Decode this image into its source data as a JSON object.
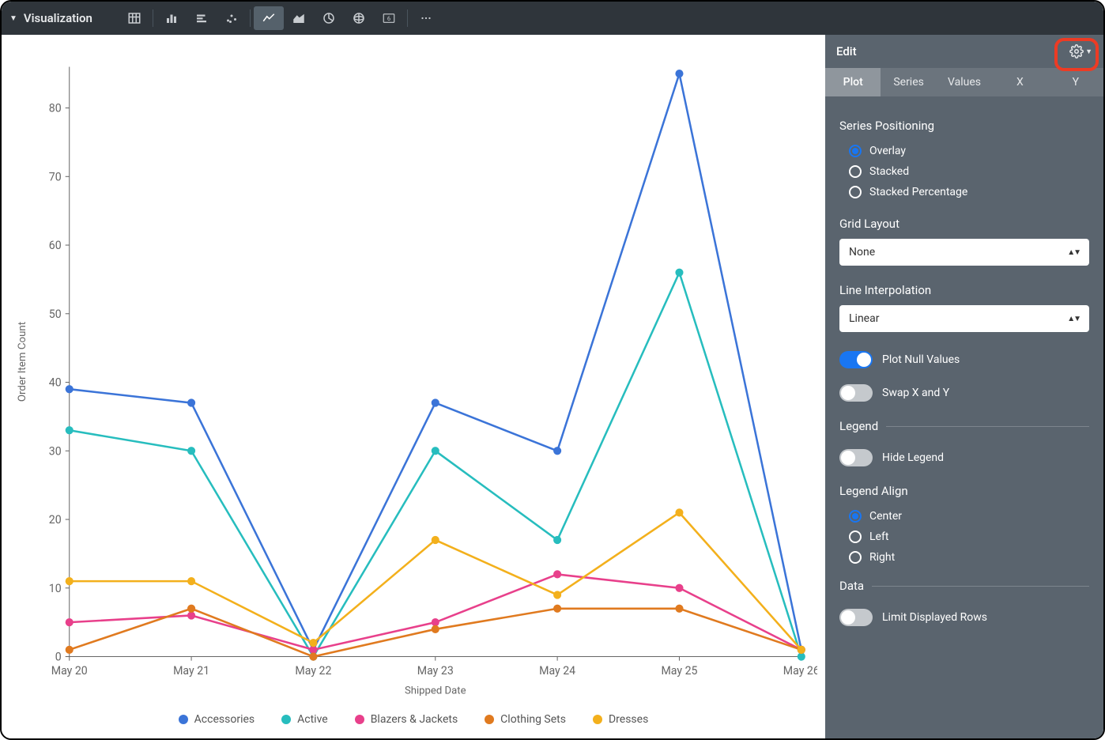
{
  "toolbar": {
    "title": "Visualization",
    "icons": [
      "table",
      "bar",
      "stacked-bar",
      "scatter",
      "line",
      "area",
      "pie",
      "map",
      "number",
      "more"
    ],
    "active_icon": 4
  },
  "side": {
    "header": "Edit",
    "tabs": [
      "Plot",
      "Series",
      "Values",
      "X",
      "Y"
    ],
    "active_tab": 0,
    "series_positioning": {
      "label": "Series Positioning",
      "options": [
        "Overlay",
        "Stacked",
        "Stacked Percentage"
      ],
      "selected": 0
    },
    "grid_layout": {
      "label": "Grid Layout",
      "value": "None"
    },
    "line_interpolation": {
      "label": "Line Interpolation",
      "value": "Linear"
    },
    "plot_null": {
      "label": "Plot Null Values",
      "on": true
    },
    "swap_xy": {
      "label": "Swap X and Y",
      "on": false
    },
    "legend_section": "Legend",
    "hide_legend": {
      "label": "Hide Legend",
      "on": false
    },
    "legend_align": {
      "label": "Legend Align",
      "options": [
        "Center",
        "Left",
        "Right"
      ],
      "selected": 0
    },
    "data_section": "Data",
    "limit_rows": {
      "label": "Limit Displayed Rows",
      "on": false
    }
  },
  "chart": {
    "type": "line",
    "x_label": "Shipped Date",
    "y_label": "Order Item Count",
    "x_categories": [
      "May 20",
      "May 21",
      "May 22",
      "May 23",
      "May 24",
      "May 25",
      "May 26"
    ],
    "y_ticks": [
      0,
      10,
      20,
      30,
      40,
      50,
      60,
      70,
      80
    ],
    "ylim": [
      0,
      86
    ],
    "background_color": "#ffffff",
    "axis_color": "#666666",
    "tick_fontsize": 14,
    "label_fontsize": 13,
    "line_width": 2.5,
    "marker_radius": 5,
    "marker_style": "circle",
    "series": [
      {
        "name": "Accessories",
        "color": "#3b74d8",
        "values": [
          39,
          37,
          1,
          37,
          30,
          85,
          1
        ]
      },
      {
        "name": "Active",
        "color": "#27bdbe",
        "values": [
          33,
          30,
          0,
          30,
          17,
          56,
          0
        ]
      },
      {
        "name": "Blazers & Jackets",
        "color": "#e8408b",
        "values": [
          5,
          6,
          1,
          5,
          12,
          10,
          1
        ]
      },
      {
        "name": "Clothing Sets",
        "color": "#e07a1f",
        "values": [
          1,
          7,
          0,
          4,
          7,
          7,
          1
        ]
      },
      {
        "name": "Dresses",
        "color": "#f3b01c",
        "values": [
          11,
          11,
          2,
          17,
          9,
          21,
          1
        ]
      }
    ]
  }
}
